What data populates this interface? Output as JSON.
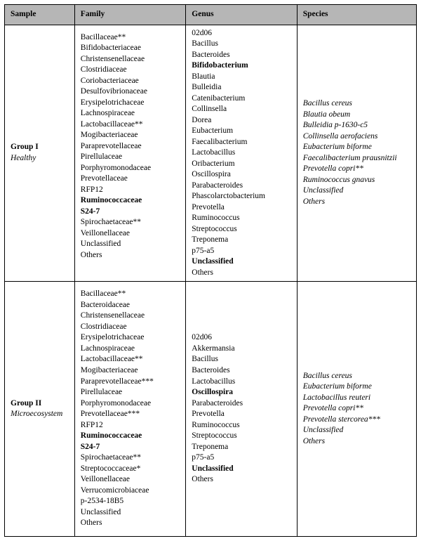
{
  "columns": [
    "Sample",
    "Family",
    "Genus",
    "Species"
  ],
  "rows": [
    {
      "sample": {
        "name": "Group I",
        "condition": "Healthy"
      },
      "family": [
        {
          "t": "Bacillaceae**"
        },
        {
          "t": "Bifidobacteriaceae"
        },
        {
          "t": "Christensenellaceae"
        },
        {
          "t": "Clostridiaceae"
        },
        {
          "t": "Coriobacteriaceae"
        },
        {
          "t": "Desulfovibrionaceae"
        },
        {
          "t": "Erysipelotrichaceae"
        },
        {
          "t": "Lachnospiraceae"
        },
        {
          "t": "Lactobacillaceae**"
        },
        {
          "t": "Mogibacteriaceae"
        },
        {
          "t": "Paraprevotellaceae"
        },
        {
          "t": "Pirellulaceae"
        },
        {
          "t": "Porphyromonodaceae"
        },
        {
          "t": "Prevotellaceae"
        },
        {
          "t": "RFP12"
        },
        {
          "t": "Ruminococcaceae",
          "b": true
        },
        {
          "t": "S24-7",
          "b": true
        },
        {
          "t": "Spirochaetaceae**"
        },
        {
          "t": "Veillonellaceae"
        },
        {
          "t": "Unclassified"
        },
        {
          "t": "Others"
        }
      ],
      "genus": [
        {
          "t": "02d06"
        },
        {
          "t": "Bacillus"
        },
        {
          "t": "Bacteroides"
        },
        {
          "t": "Bifidobacterium",
          "b": true
        },
        {
          "t": "Blautia"
        },
        {
          "t": "Bulleidia"
        },
        {
          "t": "Catenibacterium"
        },
        {
          "t": "Collinsella"
        },
        {
          "t": "Dorea"
        },
        {
          "t": "Eubacterium"
        },
        {
          "t": "Faecalibacterium"
        },
        {
          "t": "Lactobacillus"
        },
        {
          "t": "Oribacterium"
        },
        {
          "t": "Oscillospira"
        },
        {
          "t": "Parabacteroides"
        },
        {
          "t": "Phascolarctobacterium"
        },
        {
          "t": "Prevotella"
        },
        {
          "t": "Ruminococcus"
        },
        {
          "t": "Streptococcus"
        },
        {
          "t": "Treponema"
        },
        {
          "t": "p75-a5"
        },
        {
          "t": "Unclassified",
          "b": true
        },
        {
          "t": "Others"
        }
      ],
      "species": [
        {
          "t": "Bacillus cereus",
          "i": true
        },
        {
          "t": "Blautia obeum",
          "i": true
        },
        {
          "t": "Bulleidia p-1630-c5",
          "i": true
        },
        {
          "t": "Collinsella aerofaciens",
          "i": true
        },
        {
          "t": "Eubacterium biforme",
          "i": true
        },
        {
          "t": "Faecalibacterium prausnitzii",
          "i": true
        },
        {
          "t": "Prevotella copri**",
          "i": true
        },
        {
          "t": "Ruminococcus gnavus",
          "i": true
        },
        {
          "t": "Unclassified",
          "i": true
        },
        {
          "t": "Others",
          "i": true
        }
      ]
    },
    {
      "sample": {
        "name": "Group II",
        "condition": "Microecosystem"
      },
      "family": [
        {
          "t": "Bacillaceae**"
        },
        {
          "t": "Bacteroidaceae"
        },
        {
          "t": "Christensenellaceae"
        },
        {
          "t": "Clostridiaceae"
        },
        {
          "t": "Erysipelotrichaceae"
        },
        {
          "t": "Lachnospiraceae"
        },
        {
          "t": "Lactobacillaceae**"
        },
        {
          "t": "Mogibacteriaceae"
        },
        {
          "t": "Paraprevotellaceae***"
        },
        {
          "t": "Pirellulaceae"
        },
        {
          "t": "Porphyromonodaceae"
        },
        {
          "t": "Prevotellaceae***"
        },
        {
          "t": "RFP12"
        },
        {
          "t": "Ruminococcaceae",
          "b": true
        },
        {
          "t": "S24-7",
          "b": true
        },
        {
          "t": "Spirochaetaceae**"
        },
        {
          "t": "Streptococcaceae*"
        },
        {
          "t": "Veillonellaceae"
        },
        {
          "t": "Verrucomicrobiaceae"
        },
        {
          "t": "p-2534-18B5"
        },
        {
          "t": "Unclassified"
        },
        {
          "t": "Others"
        }
      ],
      "genus": [
        {
          "t": "02d06"
        },
        {
          "t": "Akkermansia"
        },
        {
          "t": "Bacillus"
        },
        {
          "t": "Bacteroides"
        },
        {
          "t": "Lactobacillus"
        },
        {
          "t": "Oscillospira",
          "b": true
        },
        {
          "t": "Parabacteroides"
        },
        {
          "t": "Prevotella"
        },
        {
          "t": "Ruminococcus"
        },
        {
          "t": "Streptococcus"
        },
        {
          "t": "Treponema"
        },
        {
          "t": "p75-a5"
        },
        {
          "t": "Unclassified",
          "b": true
        },
        {
          "t": "Others"
        }
      ],
      "species": [
        {
          "t": "Bacillus cereus",
          "i": true
        },
        {
          "t": "Eubacterium biforme",
          "i": true
        },
        {
          "t": "Lactobacillus reuteri",
          "i": true
        },
        {
          "t": "Prevotella copri**",
          "i": true
        },
        {
          "t": "Prevotella stercorea***",
          "i": true
        },
        {
          "t": "Unclassified",
          "i": true
        },
        {
          "t": "Others",
          "i": true
        }
      ]
    }
  ]
}
